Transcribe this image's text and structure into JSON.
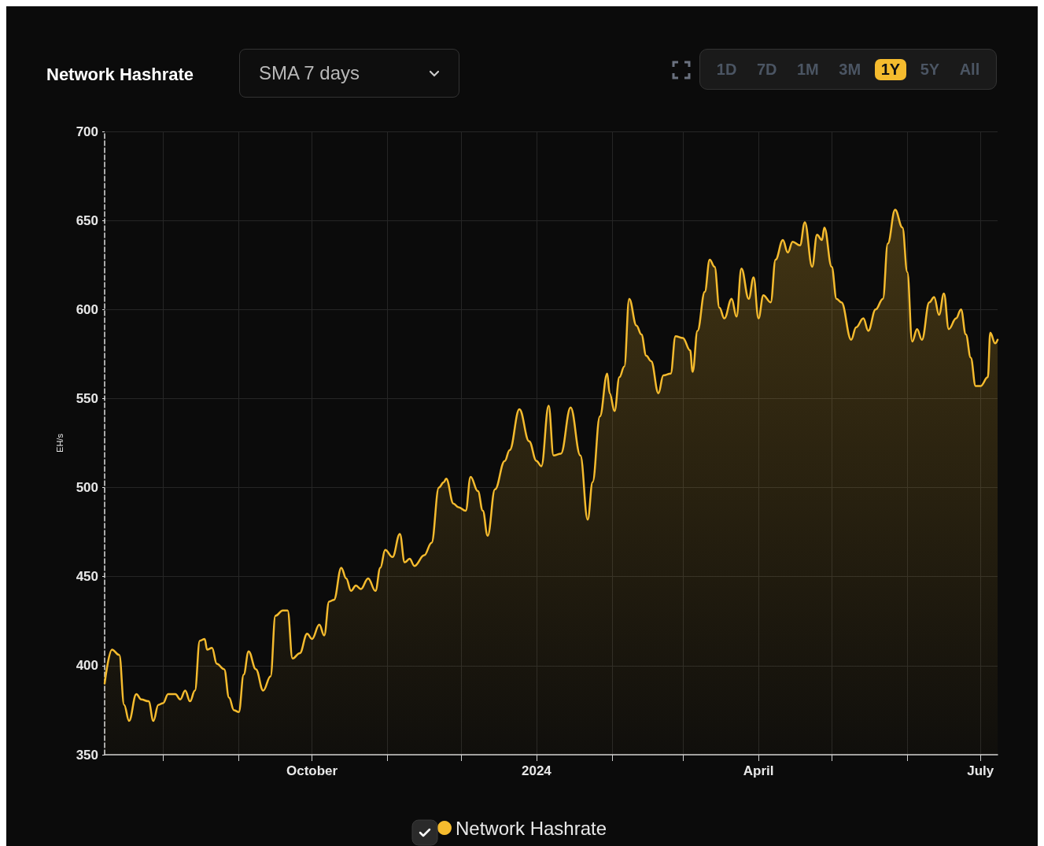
{
  "chart_data": {
    "type": "area",
    "title": "Network Hashrate",
    "ylabel": "EH/s",
    "annotations": [
      "SMA 7 days",
      "1D",
      "7D",
      "1M",
      "3M",
      "1Y",
      "5Y",
      "All"
    ],
    "x": [
      "2023-07-08",
      "2023-07-11",
      "2023-07-14",
      "2023-07-16",
      "2023-07-18",
      "2023-07-21",
      "2023-07-23",
      "2023-07-26",
      "2023-07-28",
      "2023-07-30",
      "2023-08-01",
      "2023-08-03",
      "2023-08-06",
      "2023-08-08",
      "2023-08-10",
      "2023-08-12",
      "2023-08-14",
      "2023-08-16",
      "2023-08-18",
      "2023-08-19",
      "2023-08-21",
      "2023-08-23",
      "2023-08-26",
      "2023-08-28",
      "2023-08-30",
      "2023-09-01",
      "2023-09-03",
      "2023-09-05",
      "2023-09-08",
      "2023-09-11",
      "2023-09-14",
      "2023-09-16",
      "2023-09-19",
      "2023-09-21",
      "2023-09-23",
      "2023-09-26",
      "2023-09-29",
      "2023-10-01",
      "2023-10-04",
      "2023-10-06",
      "2023-10-08",
      "2023-10-10",
      "2023-10-13",
      "2023-10-15",
      "2023-10-17",
      "2023-10-19",
      "2023-10-21",
      "2023-10-24",
      "2023-10-27",
      "2023-10-29",
      "2023-10-31",
      "2023-11-03",
      "2023-11-06",
      "2023-11-08",
      "2023-11-10",
      "2023-11-12",
      "2023-11-16",
      "2023-11-19",
      "2023-11-22",
      "2023-11-24",
      "2023-11-25",
      "2023-11-28",
      "2023-11-30",
      "2023-12-03",
      "2023-12-05",
      "2023-12-08",
      "2023-12-10",
      "2023-12-12",
      "2023-12-15",
      "2023-12-19",
      "2023-12-21",
      "2023-12-25",
      "2023-12-29",
      "2024-01-01",
      "2024-01-03",
      "2024-01-06",
      "2024-01-08",
      "2024-01-11",
      "2024-01-15",
      "2024-01-19",
      "2024-01-22",
      "2024-01-24",
      "2024-01-27",
      "2024-01-30",
      "2024-01-31",
      "2024-02-02",
      "2024-02-04",
      "2024-02-06",
      "2024-02-08",
      "2024-02-11",
      "2024-02-13",
      "2024-02-15",
      "2024-02-17",
      "2024-02-20",
      "2024-02-22",
      "2024-02-25",
      "2024-02-27",
      "2024-03-01",
      "2024-03-04",
      "2024-03-05",
      "2024-03-07",
      "2024-03-10",
      "2024-03-12",
      "2024-03-14",
      "2024-03-16",
      "2024-03-18",
      "2024-03-21",
      "2024-03-23",
      "2024-03-25",
      "2024-03-28",
      "2024-03-30",
      "2024-04-01",
      "2024-04-03",
      "2024-04-06",
      "2024-04-08",
      "2024-04-11",
      "2024-04-13",
      "2024-04-15",
      "2024-04-18",
      "2024-04-20",
      "2024-04-23",
      "2024-04-25",
      "2024-04-27",
      "2024-04-28",
      "2024-05-01",
      "2024-05-03",
      "2024-05-05",
      "2024-05-09",
      "2024-05-11",
      "2024-05-14",
      "2024-05-16",
      "2024-05-19",
      "2024-05-22",
      "2024-05-24",
      "2024-05-27",
      "2024-05-30",
      "2024-06-01",
      "2024-06-03",
      "2024-06-05",
      "2024-06-07",
      "2024-06-10",
      "2024-06-12",
      "2024-06-14",
      "2024-06-16",
      "2024-06-18",
      "2024-06-21",
      "2024-06-23",
      "2024-06-25",
      "2024-06-27",
      "2024-06-29",
      "2024-07-01",
      "2024-07-04",
      "2024-07-05",
      "2024-07-07",
      "2024-07-08"
    ],
    "series": [
      {
        "name": "Network Hashrate",
        "color": "#f5bb2e",
        "values": [
          390,
          409,
          406,
          378,
          369,
          384,
          381,
          380,
          369,
          378,
          379,
          384,
          384,
          381,
          386,
          380,
          386,
          414,
          415,
          409,
          410,
          401,
          398,
          382,
          375,
          374,
          395,
          408,
          398,
          386,
          394,
          428,
          431,
          431,
          404,
          407,
          418,
          415,
          423,
          417,
          436,
          437,
          455,
          449,
          442,
          445,
          443,
          449,
          442,
          455,
          465,
          461,
          474,
          458,
          460,
          456,
          462,
          469,
          500,
          503,
          505,
          491,
          489,
          487,
          506,
          498,
          487,
          473,
          499,
          515,
          521,
          544,
          526,
          515,
          512,
          546,
          518,
          519,
          545,
          518,
          482,
          503,
          540,
          564,
          553,
          543,
          562,
          568,
          606,
          591,
          586,
          574,
          571,
          553,
          563,
          564,
          585,
          584,
          577,
          565,
          588,
          610,
          628,
          624,
          601,
          595,
          606,
          596,
          623,
          606,
          618,
          595,
          608,
          604,
          628,
          639,
          632,
          638,
          636,
          649,
          624,
          642,
          639,
          646,
          624,
          606,
          604,
          583,
          590,
          595,
          588,
          600,
          606,
          637,
          656,
          646,
          621,
          582,
          589,
          583,
          604,
          607,
          597,
          609,
          589,
          595,
          600,
          586,
          573,
          557,
          557,
          562,
          587,
          581,
          583
        ]
      }
    ],
    "xlim": [
      "2023-07-08",
      "2024-07-08"
    ],
    "xticks": [
      {
        "value": "2023-08-01",
        "label": null
      },
      {
        "value": "2023-09-01",
        "label": null
      },
      {
        "value": "2023-10-01",
        "label": "October"
      },
      {
        "value": "2023-11-01",
        "label": null
      },
      {
        "value": "2023-12-01",
        "label": null
      },
      {
        "value": "2024-01-01",
        "label": "2024"
      },
      {
        "value": "2024-02-01",
        "label": null
      },
      {
        "value": "2024-03-01",
        "label": null
      },
      {
        "value": "2024-04-01",
        "label": "April"
      },
      {
        "value": "2024-05-01",
        "label": null
      },
      {
        "value": "2024-06-01",
        "label": null
      },
      {
        "value": "2024-07-01",
        "label": "July"
      }
    ],
    "ylim": [
      350,
      700
    ],
    "yticks": [
      350,
      400,
      450,
      500,
      550,
      600,
      650,
      700
    ],
    "grid": true,
    "legend": "bottom",
    "marker": "none",
    "line_style": "solid"
  }
}
